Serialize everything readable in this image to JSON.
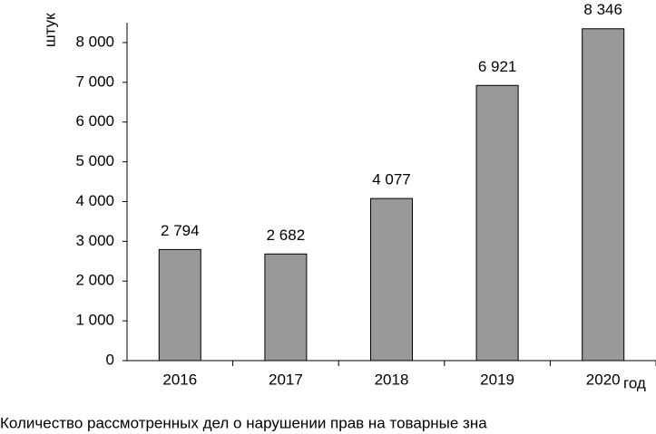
{
  "chart_data": {
    "type": "bar",
    "title": "Количество рассмотренных дел о нарушении прав на товарные зна",
    "y_label": "штук",
    "x_label": "год",
    "categories": [
      "2016",
      "2017",
      "2018",
      "2019",
      "2020"
    ],
    "values": [
      2794,
      2682,
      4077,
      6921,
      8346
    ],
    "value_labels": [
      "2 794",
      "2 682",
      "4 077",
      "6 921",
      "8 346"
    ],
    "color": "#999999",
    "ylim": [
      0,
      8500
    ],
    "yticks": [
      0,
      {
        "value": 1000,
        "label": "1 000"
      },
      {
        "value": 2000,
        "label": "2 000"
      },
      {
        "value": 3000,
        "label": "3 000"
      },
      {
        "value": 4000,
        "label": "4 000"
      },
      {
        "value": 5000,
        "label": "5 000"
      },
      {
        "value": 6000,
        "label": "6 000"
      },
      {
        "value": 7000,
        "label": "7 000"
      },
      {
        "value": 8000,
        "label": "8 000"
      }
    ],
    "grid": false
  }
}
